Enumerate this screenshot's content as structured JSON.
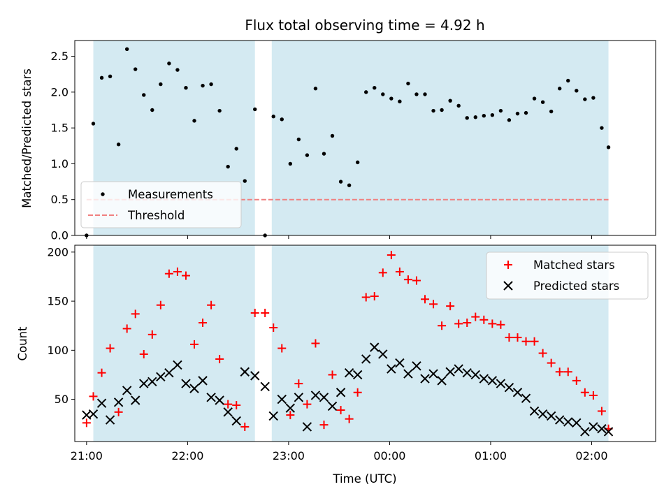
{
  "chart_data": [
    {
      "type": "scatter",
      "title": "Flux total observing time = 4.92 h",
      "ylabel": "Matched/Predicted stars",
      "xlim": [
        "20:53",
        "02:38"
      ],
      "ylim": [
        0,
        2.72
      ],
      "yticks": [
        "0.0",
        "0.5",
        "1.0",
        "1.5",
        "2.0",
        "2.5"
      ],
      "grid": false,
      "legend_position": "lower-left",
      "shaded_intervals": [
        [
          "21:04",
          "22:40"
        ],
        [
          "22:50",
          "02:10"
        ]
      ],
      "shade_color": "#add8e6",
      "threshold": {
        "name": "Threshold",
        "value": 0.5,
        "x_range": [
          "21:00",
          "02:10"
        ],
        "color": "#f08080",
        "style": "dashed"
      },
      "series": [
        {
          "name": "Measurements",
          "color": "#000000",
          "marker": "dot",
          "x": [
            "21:00",
            "21:04",
            "21:09",
            "21:14",
            "21:19",
            "21:24",
            "21:29",
            "21:34",
            "21:39",
            "21:44",
            "21:49",
            "21:54",
            "21:59",
            "22:04",
            "22:09",
            "22:14",
            "22:19",
            "22:24",
            "22:29",
            "22:34",
            "22:40",
            "22:46",
            "22:51",
            "22:56",
            "23:01",
            "23:06",
            "23:11",
            "23:16",
            "23:21",
            "23:26",
            "23:31",
            "23:36",
            "23:41",
            "23:46",
            "23:51",
            "23:56",
            "00:01",
            "00:06",
            "00:11",
            "00:16",
            "00:21",
            "00:26",
            "00:31",
            "00:36",
            "00:41",
            "00:46",
            "00:51",
            "00:56",
            "01:01",
            "01:06",
            "01:11",
            "01:16",
            "01:21",
            "01:26",
            "01:31",
            "01:36",
            "01:41",
            "01:46",
            "01:51",
            "01:56",
            "02:01",
            "02:06",
            "02:10"
          ],
          "y": [
            0.0,
            1.56,
            2.2,
            2.22,
            1.27,
            2.6,
            2.32,
            1.96,
            1.75,
            2.11,
            2.4,
            2.31,
            2.06,
            1.6,
            2.09,
            2.11,
            1.74,
            0.96,
            1.21,
            0.76,
            1.76,
            0.0,
            1.66,
            1.62,
            1.0,
            1.34,
            1.12,
            2.05,
            1.14,
            1.39,
            0.75,
            0.7,
            1.02,
            2.0,
            2.06,
            1.97,
            1.91,
            1.87,
            2.12,
            1.97,
            1.97,
            1.74,
            1.75,
            1.88,
            1.81,
            1.64,
            1.65,
            1.67,
            1.68,
            1.74,
            1.61,
            1.7,
            1.71,
            1.91,
            1.86,
            1.73,
            2.05,
            2.16,
            2.02,
            1.9,
            1.92,
            1.5,
            1.23
          ]
        }
      ]
    },
    {
      "type": "scatter",
      "xlabel": "Time (UTC)",
      "ylabel": "Count",
      "xlim": [
        "20:53",
        "02:38"
      ],
      "ylim": [
        7,
        207
      ],
      "xticks": [
        "21:00",
        "22:00",
        "23:00",
        "00:00",
        "01:00",
        "02:00"
      ],
      "yticks": [
        "50",
        "100",
        "150",
        "200"
      ],
      "grid": false,
      "legend_position": "top-right",
      "shaded_intervals": [
        [
          "21:04",
          "22:40"
        ],
        [
          "22:50",
          "02:10"
        ]
      ],
      "shade_color": "#add8e6",
      "series": [
        {
          "name": "Matched stars",
          "color": "#ff0000",
          "marker": "plus",
          "x": [
            "21:00",
            "21:04",
            "21:09",
            "21:14",
            "21:19",
            "21:24",
            "21:29",
            "21:34",
            "21:39",
            "21:44",
            "21:49",
            "21:54",
            "21:59",
            "22:04",
            "22:09",
            "22:14",
            "22:19",
            "22:24",
            "22:29",
            "22:34",
            "22:40",
            "22:46",
            "22:51",
            "22:56",
            "23:01",
            "23:06",
            "23:11",
            "23:16",
            "23:21",
            "23:26",
            "23:31",
            "23:36",
            "23:41",
            "23:46",
            "23:51",
            "23:56",
            "00:01",
            "00:06",
            "00:11",
            "00:16",
            "00:21",
            "00:26",
            "00:31",
            "00:36",
            "00:41",
            "00:46",
            "00:51",
            "00:56",
            "01:01",
            "01:06",
            "01:11",
            "01:16",
            "01:21",
            "01:26",
            "01:31",
            "01:36",
            "01:41",
            "01:46",
            "01:51",
            "01:56",
            "02:01",
            "02:06",
            "02:10"
          ],
          "y": [
            26,
            53,
            77,
            102,
            37,
            122,
            137,
            96,
            116,
            146,
            178,
            180,
            176,
            106,
            128,
            146,
            91,
            45,
            44,
            22,
            138,
            138,
            123,
            102,
            34,
            66,
            45,
            107,
            24,
            75,
            39,
            30,
            57,
            154,
            155,
            179,
            197,
            180,
            172,
            171,
            152,
            147,
            125,
            145,
            127,
            128,
            134,
            131,
            127,
            126,
            113,
            113,
            109,
            109,
            97,
            87,
            78,
            78,
            69,
            57,
            54,
            38,
            20
          ]
        },
        {
          "name": "Predicted stars",
          "color": "#000000",
          "marker": "x",
          "x": [
            "21:00",
            "21:04",
            "21:09",
            "21:14",
            "21:19",
            "21:24",
            "21:29",
            "21:34",
            "21:39",
            "21:44",
            "21:49",
            "21:54",
            "21:59",
            "22:04",
            "22:09",
            "22:14",
            "22:19",
            "22:24",
            "22:29",
            "22:34",
            "22:40",
            "22:46",
            "22:51",
            "22:56",
            "23:01",
            "23:06",
            "23:11",
            "23:16",
            "23:21",
            "23:26",
            "23:31",
            "23:36",
            "23:41",
            "23:46",
            "23:51",
            "23:56",
            "00:01",
            "00:06",
            "00:11",
            "00:16",
            "00:21",
            "00:26",
            "00:31",
            "00:36",
            "00:41",
            "00:46",
            "00:51",
            "00:56",
            "01:01",
            "01:06",
            "01:11",
            "01:16",
            "01:21",
            "01:26",
            "01:31",
            "01:36",
            "01:41",
            "01:46",
            "01:51",
            "01:56",
            "02:01",
            "02:06",
            "02:10"
          ],
          "y": [
            34,
            35,
            46,
            29,
            47,
            59,
            49,
            66,
            68,
            73,
            77,
            85,
            66,
            61,
            69,
            52,
            49,
            37,
            28,
            78,
            74,
            63,
            33,
            50,
            41,
            52,
            22,
            54,
            52,
            43,
            57,
            77,
            75,
            91,
            103,
            96,
            81,
            87,
            76,
            84,
            71,
            76,
            69,
            78,
            81,
            77,
            75,
            71,
            69,
            66,
            62,
            57,
            51,
            38,
            35,
            33,
            29,
            27,
            26,
            17,
            22,
            20,
            17
          ]
        }
      ]
    }
  ]
}
